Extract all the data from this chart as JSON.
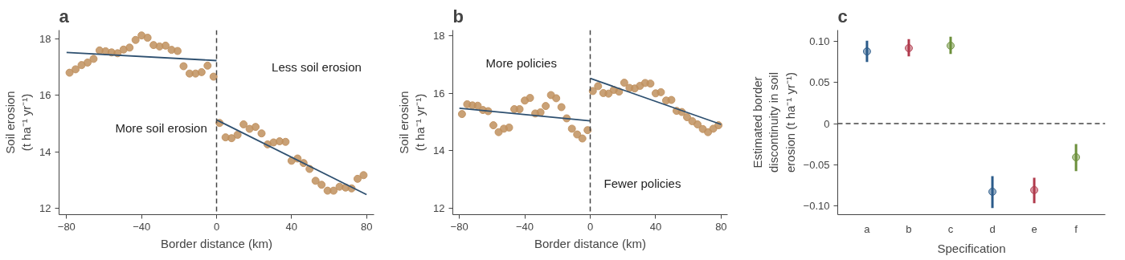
{
  "chart_data": [
    {
      "type": "scatter",
      "title": "a",
      "xlabel": "Border distance (km)",
      "ylabel": "Soil erosion\n(t ha⁻¹ yr⁻¹)",
      "xlim": [
        -84,
        84
      ],
      "ylim": [
        11.77,
        18.31
      ],
      "xticks": [
        -80,
        -40,
        0,
        40,
        80
      ],
      "yticks": [
        12,
        14,
        16,
        18
      ],
      "grid": false,
      "line_style": "solid",
      "annotations": [
        "Less soil erosion",
        "More soil erosion"
      ],
      "ref_lines": [
        {
          "axis": "x",
          "value": 0,
          "line_style": "dashed",
          "color": "#444444"
        }
      ],
      "series": [
        {
          "type": "scatter",
          "color": "#c0905e",
          "x": [
            -78.4,
            -75.2,
            -72.0,
            -68.8,
            -65.6,
            -62.4,
            -59.2,
            -56.0,
            -52.8,
            -49.6,
            -46.4,
            -43.2,
            -40.0,
            -36.8,
            -33.6,
            -30.4,
            -27.2,
            -24.0,
            -20.8,
            -17.6,
            -14.4,
            -11.2,
            -8.0,
            -4.8,
            -1.6,
            1.6,
            4.8,
            8.0,
            11.2,
            14.4,
            17.6,
            20.8,
            24.0,
            27.2,
            30.4,
            33.6,
            36.8,
            40.0,
            43.2,
            46.4,
            49.6,
            52.8,
            56.0,
            59.2,
            62.4,
            65.6,
            68.8,
            72.0,
            75.2,
            78.4
          ],
          "values": [
            16.8,
            16.92,
            17.07,
            17.16,
            17.29,
            17.59,
            17.56,
            17.52,
            17.49,
            17.62,
            17.69,
            17.96,
            18.12,
            18.04,
            17.78,
            17.73,
            17.76,
            17.61,
            17.57,
            17.03,
            16.77,
            16.77,
            16.82,
            17.05,
            16.66,
            15.02,
            14.51,
            14.48,
            14.6,
            14.97,
            14.81,
            14.88,
            14.65,
            14.26,
            14.33,
            14.37,
            14.35,
            13.68,
            13.76,
            13.6,
            13.39,
            12.97,
            12.83,
            12.62,
            12.62,
            12.76,
            12.73,
            12.7,
            13.04,
            13.17
          ]
        },
        {
          "type": "line",
          "color": "#2e5070",
          "x": [
            -80,
            0
          ],
          "values": [
            17.52,
            17.23
          ]
        },
        {
          "type": "line",
          "color": "#2e5070",
          "x": [
            0,
            80
          ],
          "values": [
            15.13,
            12.48
          ]
        }
      ]
    },
    {
      "type": "scatter",
      "title": "b",
      "xlabel": "Border distance (km)",
      "ylabel": "Soil erosion\n(t ha⁻¹ yr⁻¹)",
      "xlim": [
        -84,
        84
      ],
      "ylim": [
        11.78,
        18.2
      ],
      "xticks": [
        -80,
        -40,
        0,
        40,
        80
      ],
      "yticks": [
        12,
        14,
        16,
        18
      ],
      "grid": false,
      "line_style": "solid",
      "annotations": [
        "More policies",
        "Fewer policies"
      ],
      "ref_lines": [
        {
          "axis": "x",
          "value": 0,
          "line_style": "dashed",
          "color": "#444444"
        }
      ],
      "series": [
        {
          "type": "scatter",
          "color": "#c0905e",
          "x": [
            -78.4,
            -75.2,
            -72.0,
            -68.8,
            -65.6,
            -62.4,
            -59.2,
            -56.0,
            -52.8,
            -49.6,
            -46.4,
            -43.2,
            -40.0,
            -36.8,
            -33.6,
            -30.4,
            -27.2,
            -24.0,
            -20.8,
            -17.6,
            -14.4,
            -11.2,
            -8.0,
            -4.8,
            -1.6,
            1.6,
            4.8,
            8.0,
            11.2,
            14.4,
            17.6,
            20.8,
            24.0,
            27.2,
            30.4,
            33.6,
            36.8,
            40.0,
            43.2,
            46.4,
            49.6,
            52.8,
            56.0,
            59.2,
            62.4,
            65.6,
            68.8,
            72.0,
            75.2,
            78.4
          ],
          "values": [
            15.28,
            15.62,
            15.58,
            15.57,
            15.42,
            15.38,
            14.89,
            14.65,
            14.77,
            14.81,
            15.45,
            15.45,
            15.75,
            15.84,
            15.3,
            15.34,
            15.56,
            15.94,
            15.83,
            15.52,
            15.13,
            14.77,
            14.57,
            14.43,
            14.72,
            16.08,
            16.25,
            16.01,
            15.99,
            16.12,
            16.06,
            16.37,
            16.19,
            16.17,
            16.26,
            16.36,
            16.34,
            16.0,
            16.04,
            15.75,
            15.77,
            15.39,
            15.35,
            15.17,
            15.03,
            14.92,
            14.76,
            14.65,
            14.77,
            14.89
          ]
        },
        {
          "type": "line",
          "color": "#2e5070",
          "x": [
            -80,
            0
          ],
          "values": [
            15.48,
            15.04
          ]
        },
        {
          "type": "line",
          "color": "#2e5070",
          "x": [
            0,
            80
          ],
          "values": [
            16.52,
            14.92
          ]
        }
      ]
    },
    {
      "type": "scatter",
      "title": "c",
      "xlabel": "Specification",
      "ylabel": "Estimated border\ndiscontinuity in soil\nerosion (t ha⁻¹ yr⁻¹)",
      "ylim": [
        -0.111,
        0.114
      ],
      "yticks": [
        {
          "value": -0.1,
          "label": "−0.10"
        },
        {
          "value": -0.05,
          "label": "−0.05"
        },
        0,
        {
          "value": 0.05,
          "label": "0.05"
        },
        {
          "value": 0.1,
          "label": "0.10"
        }
      ],
      "grid": false,
      "marker": "circle",
      "ref_lines": [
        {
          "axis": "y",
          "value": 0,
          "line_style": "dashed",
          "color": "#444444"
        }
      ],
      "categories": [
        "a",
        "b",
        "c",
        "d",
        "e",
        "f"
      ],
      "values": [
        0.088,
        0.092,
        0.095,
        -0.083,
        -0.081,
        -0.041
      ],
      "errors": [
        [
          0.075,
          0.101
        ],
        [
          0.082,
          0.103
        ],
        [
          0.085,
          0.106
        ],
        [
          -0.103,
          -0.064
        ],
        [
          -0.097,
          -0.066
        ],
        [
          -0.058,
          -0.025
        ]
      ],
      "colors": [
        "#2b5b8a",
        "#b03a4c",
        "#6b8f3a",
        "#2b5b8a",
        "#b03a4c",
        "#6b8f3a"
      ]
    }
  ]
}
